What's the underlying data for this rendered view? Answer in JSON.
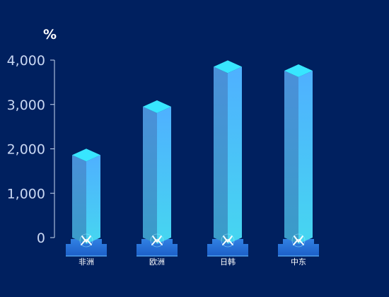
{
  "chart_data": {
    "type": "bar",
    "style": "3d-cylinder-bars-on-pedestal",
    "unit": "%",
    "categories": [
      "非洲",
      "欧洲",
      "日韩",
      "中东"
    ],
    "values": [
      1860,
      2950,
      3850,
      3760
    ],
    "ylim": [
      0,
      4000
    ],
    "yticks": [
      0,
      1000,
      2000,
      3000,
      4000
    ],
    "ytick_labels": [
      "0",
      "1,000",
      "2,000",
      "3,000",
      "4,000"
    ],
    "grid": false,
    "legend": "none",
    "colors": {
      "background": "#00205f",
      "bar_left": "#3b7fc4",
      "bar_right": "#4ec3f5",
      "bar_top": "#38e6ff",
      "pedestal": "#2f7fe0",
      "axis": "#c9d7f2",
      "label": "#ffffff"
    }
  }
}
